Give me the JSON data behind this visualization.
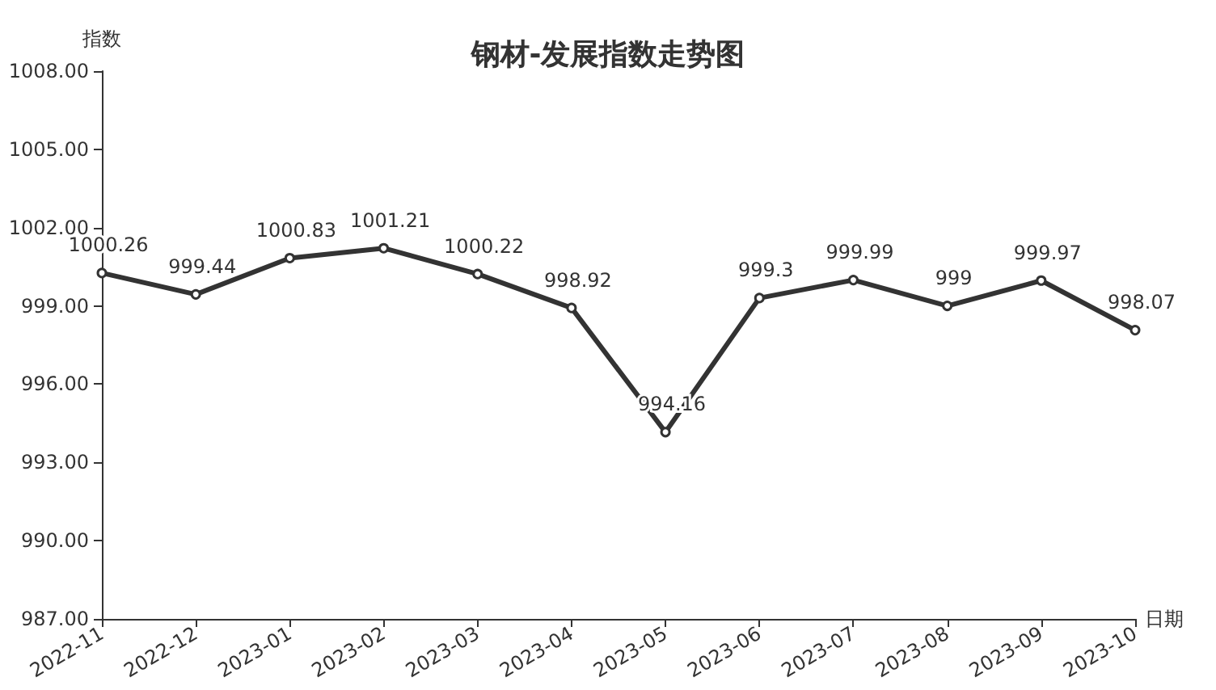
{
  "chart_data": {
    "type": "line",
    "title": "钢材-发展指数走势图",
    "xlabel": "日期",
    "ylabel": "指数",
    "categories": [
      "2022-11",
      "2022-12",
      "2023-01",
      "2023-02",
      "2023-03",
      "2023-04",
      "2023-05",
      "2023-06",
      "2023-07",
      "2023-08",
      "2023-09",
      "2023-10"
    ],
    "series": [
      {
        "color": "#333333",
        "values": [
          1000.26,
          999.44,
          1000.83,
          1001.21,
          1000.22,
          998.92,
          994.16,
          999.3,
          999.99,
          999,
          999.97,
          998.07
        ]
      }
    ],
    "ylim": [
      987,
      1008
    ],
    "yticks": [
      {
        "value": 987,
        "label": "987.00"
      },
      {
        "value": 990,
        "label": "990.00"
      },
      {
        "value": 993,
        "label": "993.00"
      },
      {
        "value": 996,
        "label": "996.00"
      },
      {
        "value": 999,
        "label": "999.00"
      },
      {
        "value": 1002,
        "label": "1002.00"
      },
      {
        "value": 1005,
        "label": "1005.00"
      },
      {
        "value": 1008,
        "label": "1008.00"
      }
    ],
    "grid": false,
    "marker": "circle",
    "line_style": "solid",
    "data_labels": true
  }
}
